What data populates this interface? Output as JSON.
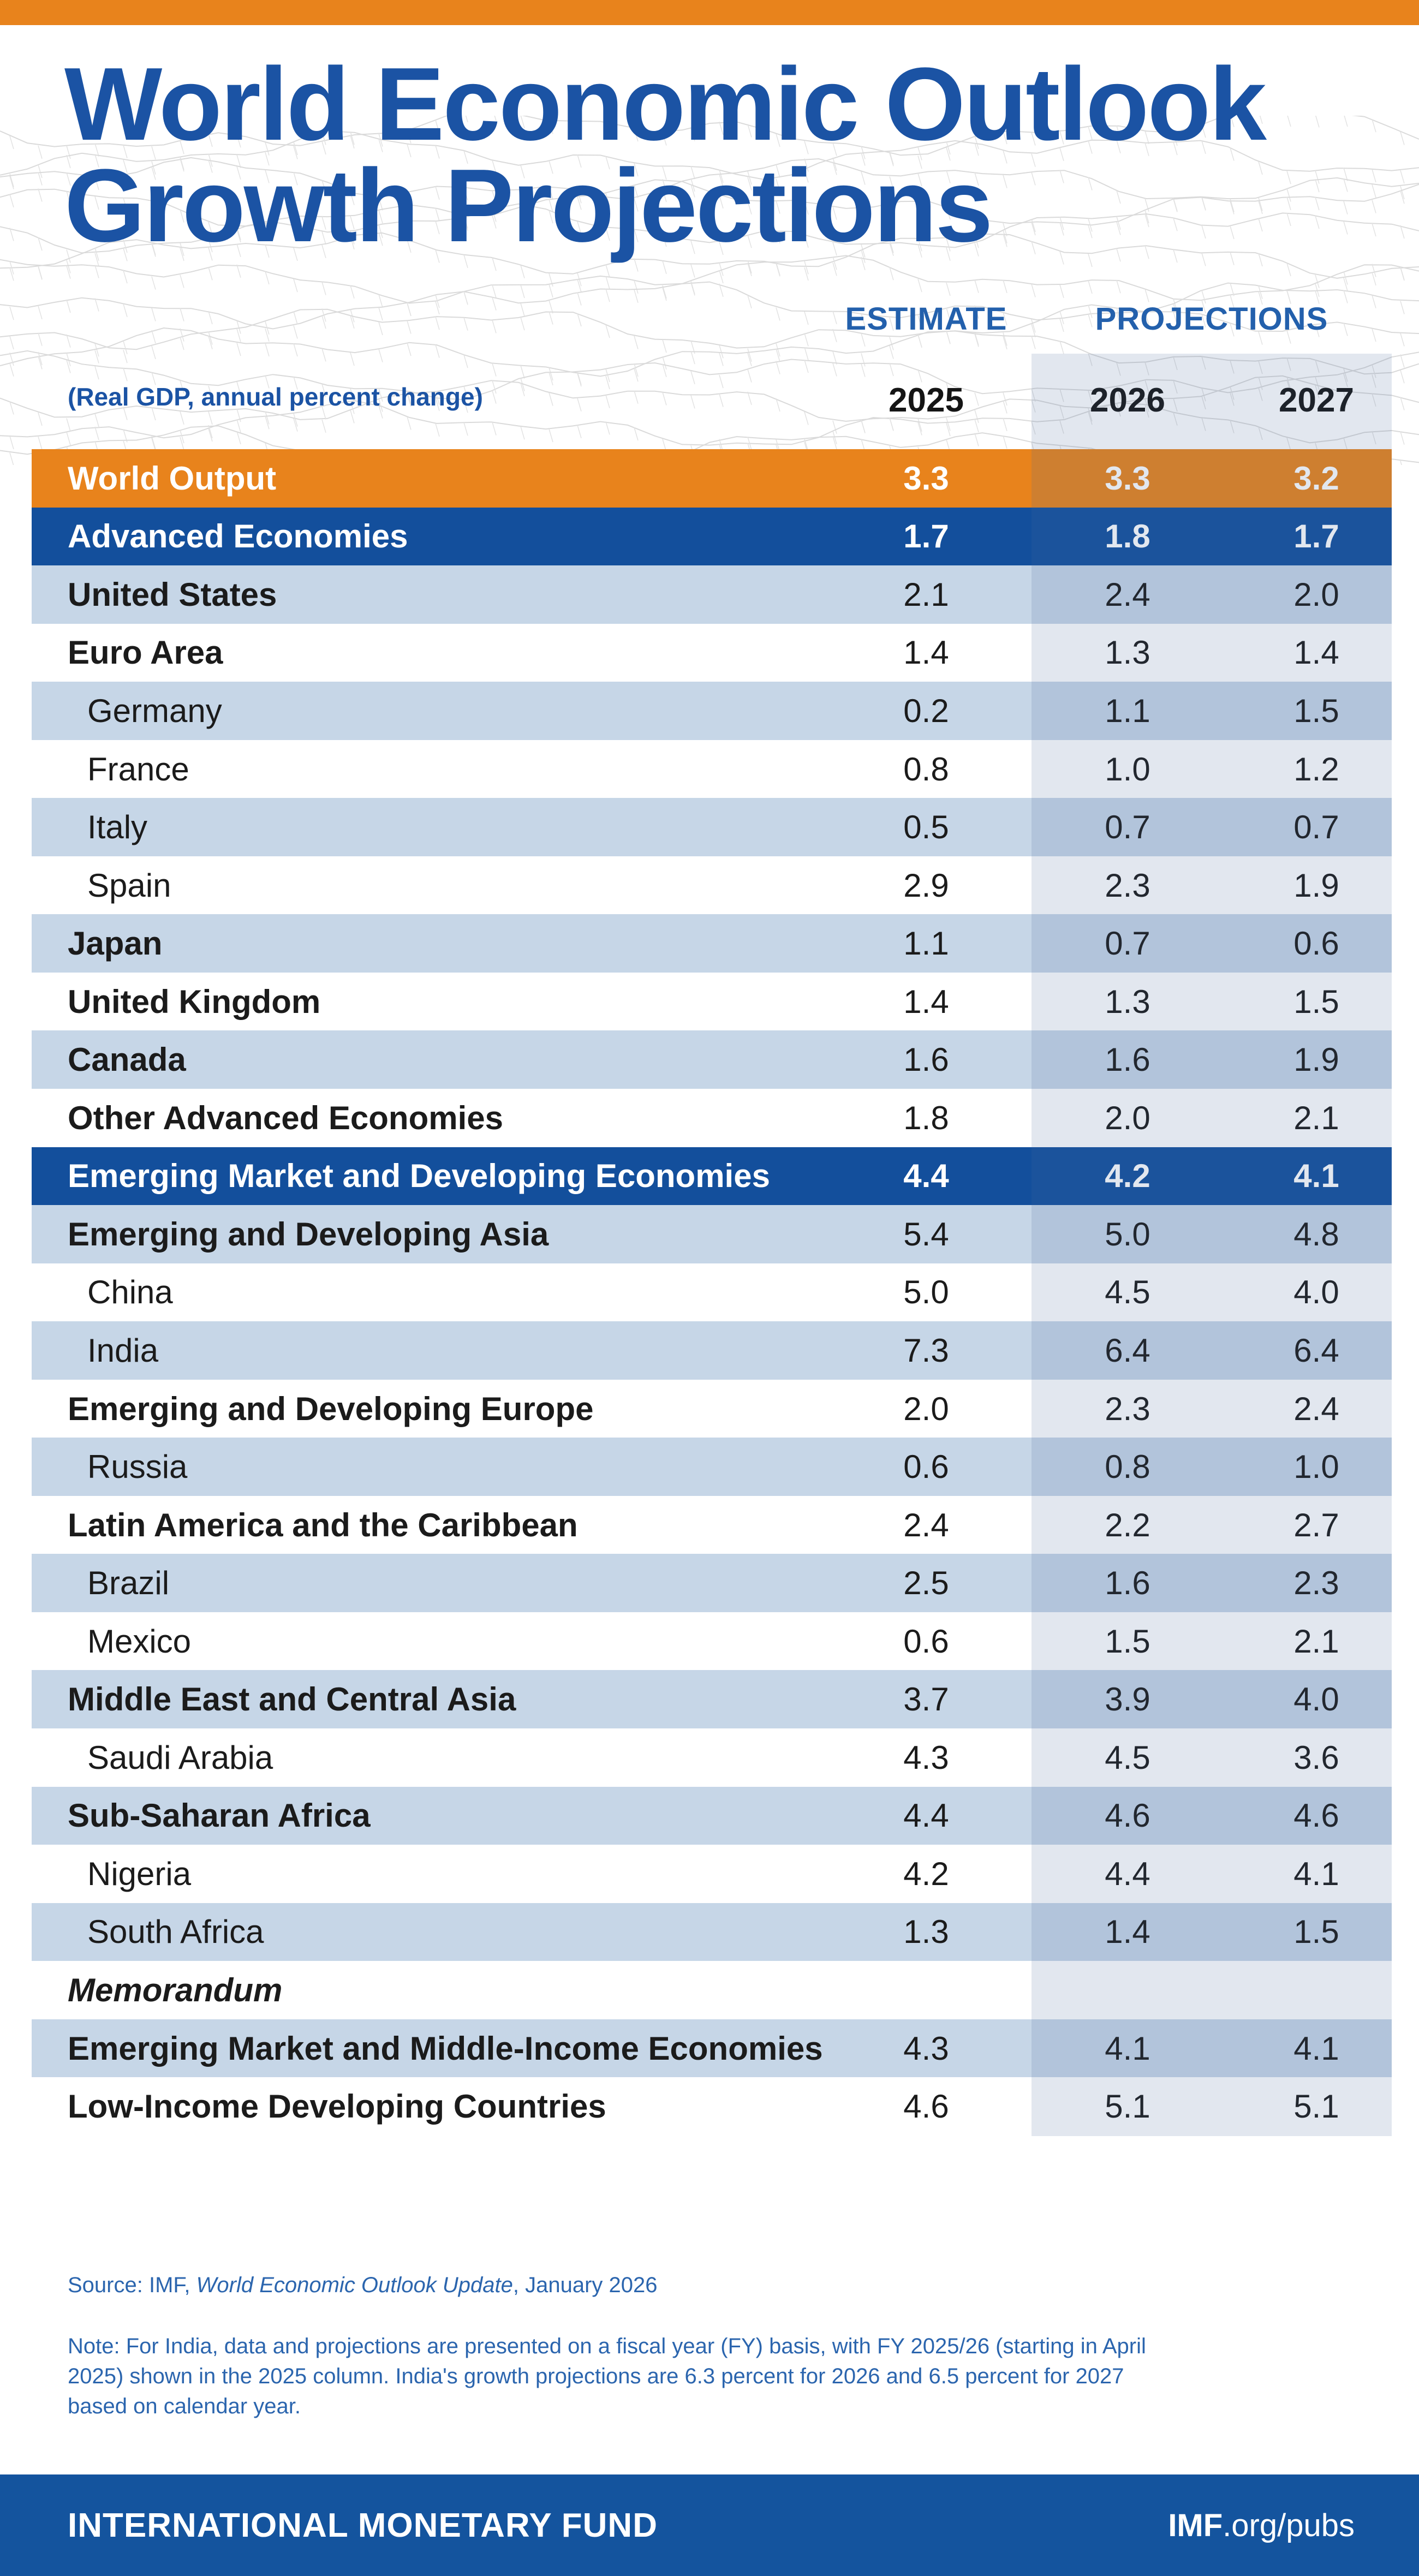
{
  "page": {
    "title_line1": "World Economic Outlook",
    "title_line2": "Growth Projections"
  },
  "chart_data": {
    "type": "table",
    "title": "World Economic Outlook Growth Projections",
    "unit_label": "(Real GDP, annual percent change)",
    "estimate_label": "ESTIMATE",
    "projections_label": "PROJECTIONS",
    "years": [
      "2025",
      "2026",
      "2027"
    ],
    "rows": [
      {
        "label": "World Output",
        "values": [
          "3.3",
          "3.3",
          "3.2"
        ],
        "style": "world",
        "shade": false
      },
      {
        "label": "Advanced Economies",
        "values": [
          "1.7",
          "1.8",
          "1.7"
        ],
        "style": "group",
        "shade": false
      },
      {
        "label": "United States",
        "values": [
          "2.1",
          "2.4",
          "2.0"
        ],
        "style": "agg",
        "shade": true
      },
      {
        "label": "Euro Area",
        "values": [
          "1.4",
          "1.3",
          "1.4"
        ],
        "style": "agg",
        "shade": false
      },
      {
        "label": "Germany",
        "values": [
          "0.2",
          "1.1",
          "1.5"
        ],
        "style": "sub",
        "shade": true
      },
      {
        "label": "France",
        "values": [
          "0.8",
          "1.0",
          "1.2"
        ],
        "style": "sub",
        "shade": false
      },
      {
        "label": "Italy",
        "values": [
          "0.5",
          "0.7",
          "0.7"
        ],
        "style": "sub",
        "shade": true
      },
      {
        "label": "Spain",
        "values": [
          "2.9",
          "2.3",
          "1.9"
        ],
        "style": "sub",
        "shade": false
      },
      {
        "label": "Japan",
        "values": [
          "1.1",
          "0.7",
          "0.6"
        ],
        "style": "agg",
        "shade": true
      },
      {
        "label": "United Kingdom",
        "values": [
          "1.4",
          "1.3",
          "1.5"
        ],
        "style": "agg",
        "shade": false
      },
      {
        "label": "Canada",
        "values": [
          "1.6",
          "1.6",
          "1.9"
        ],
        "style": "agg",
        "shade": true
      },
      {
        "label": "Other Advanced Economies",
        "values": [
          "1.8",
          "2.0",
          "2.1"
        ],
        "style": "agg",
        "shade": false
      },
      {
        "label": "Emerging Market and Developing Economies",
        "values": [
          "4.4",
          "4.2",
          "4.1"
        ],
        "style": "group",
        "shade": false
      },
      {
        "label": "Emerging and Developing Asia",
        "values": [
          "5.4",
          "5.0",
          "4.8"
        ],
        "style": "agg",
        "shade": true
      },
      {
        "label": "China",
        "values": [
          "5.0",
          "4.5",
          "4.0"
        ],
        "style": "sub",
        "shade": false
      },
      {
        "label": "India",
        "values": [
          "7.3",
          "6.4",
          "6.4"
        ],
        "style": "sub",
        "shade": true
      },
      {
        "label": "Emerging and Developing Europe",
        "values": [
          "2.0",
          "2.3",
          "2.4"
        ],
        "style": "agg",
        "shade": false
      },
      {
        "label": "Russia",
        "values": [
          "0.6",
          "0.8",
          "1.0"
        ],
        "style": "sub",
        "shade": true
      },
      {
        "label": "Latin America and the Caribbean",
        "values": [
          "2.4",
          "2.2",
          "2.7"
        ],
        "style": "agg",
        "shade": false
      },
      {
        "label": "Brazil",
        "values": [
          "2.5",
          "1.6",
          "2.3"
        ],
        "style": "sub",
        "shade": true
      },
      {
        "label": "Mexico",
        "values": [
          "0.6",
          "1.5",
          "2.1"
        ],
        "style": "sub",
        "shade": false
      },
      {
        "label": "Middle East and Central Asia",
        "values": [
          "3.7",
          "3.9",
          "4.0"
        ],
        "style": "agg",
        "shade": true
      },
      {
        "label": "Saudi Arabia",
        "values": [
          "4.3",
          "4.5",
          "3.6"
        ],
        "style": "sub",
        "shade": false
      },
      {
        "label": "Sub-Saharan Africa",
        "values": [
          "4.4",
          "4.6",
          "4.6"
        ],
        "style": "agg",
        "shade": true
      },
      {
        "label": "Nigeria",
        "values": [
          "4.2",
          "4.4",
          "4.1"
        ],
        "style": "sub",
        "shade": false
      },
      {
        "label": "South Africa",
        "values": [
          "1.3",
          "1.4",
          "1.5"
        ],
        "style": "sub",
        "shade": true
      },
      {
        "label": "Memorandum",
        "values": [
          "",
          "",
          ""
        ],
        "style": "memo",
        "shade": false
      },
      {
        "label": "Emerging Market and Middle-Income Economies",
        "values": [
          "4.3",
          "4.1",
          "4.1"
        ],
        "style": "agg",
        "shade": true
      },
      {
        "label": "Low-Income Developing Countries",
        "values": [
          "4.6",
          "5.1",
          "5.1"
        ],
        "style": "agg",
        "shade": false
      }
    ]
  },
  "source": {
    "prefix": "Source: IMF, ",
    "italic": "World Economic Outlook Update",
    "suffix": ", January 2026"
  },
  "note_lines": [
    "Note: For India, data and projections are presented on a fiscal year (FY) basis, with FY 2025/26 (starting in April",
    "2025) shown in the 2025 column. India's growth projections are 6.3 percent for 2026 and 6.5 percent for 2027",
    "based on calendar year."
  ],
  "footer": {
    "left": "INTERNATIONAL MONETARY FUND",
    "right_bold": "IMF",
    "right_rest": ".org/pubs"
  },
  "colors": {
    "orange": "#E8831C",
    "navy_row": "#134F9C",
    "footer_navy": "#14549E",
    "light_blue_row": "#C6D6E7",
    "projection_band_tint": "rgba(74,107,158,0.16)",
    "title_blue": "#1B53A4",
    "header_blue": "#2360AC",
    "note_blue": "#2B65AE",
    "text_black": "#1b1b1b"
  }
}
